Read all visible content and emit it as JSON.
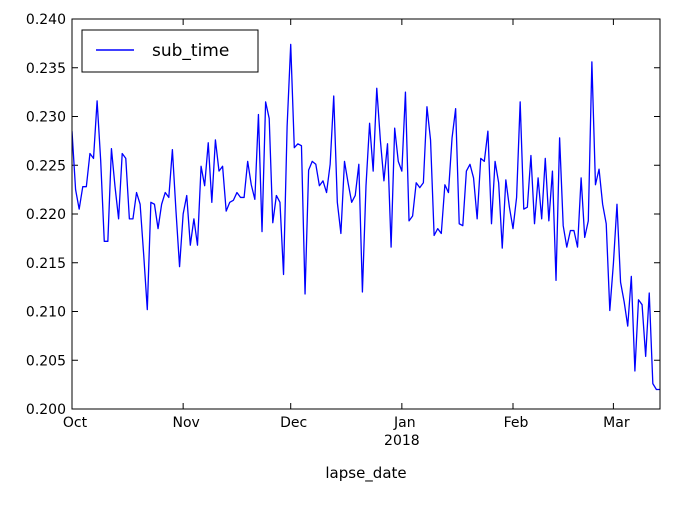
{
  "chart_data": {
    "type": "line",
    "title": "",
    "xlabel": "lapse_date",
    "ylabel": "",
    "ylim": [
      0.2,
      0.24
    ],
    "yticks": [
      0.2,
      0.205,
      0.21,
      0.215,
      0.22,
      0.225,
      0.23,
      0.235,
      0.24
    ],
    "ytick_labels": [
      "0.200",
      "0.205",
      "0.210",
      "0.215",
      "0.220",
      "0.225",
      "0.230",
      "0.235",
      "0.240"
    ],
    "xlim_days": [
      0,
      164
    ],
    "xticks": [
      {
        "day": 0,
        "label": "Oct",
        "sublabel": ""
      },
      {
        "day": 31,
        "label": "Nov",
        "sublabel": ""
      },
      {
        "day": 61,
        "label": "Dec",
        "sublabel": ""
      },
      {
        "day": 92,
        "label": "Jan",
        "sublabel": "2018"
      },
      {
        "day": 123,
        "label": "Feb",
        "sublabel": ""
      },
      {
        "day": 151,
        "label": "Mar",
        "sublabel": ""
      }
    ],
    "grid": false,
    "legend": {
      "position": "top-left",
      "entries": [
        {
          "name": "sub_time",
          "color": "#0000ff"
        }
      ]
    },
    "series": [
      {
        "name": "sub_time",
        "color": "#0000ff",
        "x_unit": "days since 2017-10-01",
        "x": [
          0,
          1,
          2,
          3,
          4,
          5,
          6,
          7,
          8,
          9,
          10,
          11,
          12,
          13,
          14,
          15,
          16,
          17,
          18,
          19,
          20,
          21,
          22,
          23,
          24,
          25,
          26,
          27,
          28,
          29,
          30,
          31,
          32,
          33,
          34,
          35,
          36,
          37,
          38,
          39,
          40,
          41,
          42,
          43,
          44,
          45,
          46,
          47,
          48,
          49,
          50,
          51,
          52,
          53,
          54,
          55,
          56,
          57,
          58,
          59,
          60,
          61,
          62,
          63,
          64,
          65,
          66,
          67,
          68,
          69,
          70,
          71,
          72,
          73,
          74,
          75,
          76,
          77,
          78,
          79,
          80,
          81,
          82,
          83,
          84,
          85,
          86,
          87,
          88,
          89,
          90,
          91,
          92,
          93,
          94,
          95,
          96,
          97,
          98,
          99,
          100,
          101,
          102,
          103,
          104,
          105,
          106,
          107,
          108,
          109,
          110,
          111,
          112,
          113,
          114,
          115,
          116,
          117,
          118,
          119,
          120,
          121,
          122,
          123,
          124,
          125,
          126,
          127,
          128,
          129,
          130,
          131,
          132,
          133,
          134,
          135,
          136,
          137,
          138,
          139,
          140,
          141,
          142,
          143,
          144,
          145,
          146,
          147,
          148,
          149,
          150,
          151,
          152,
          153,
          154,
          155,
          156,
          157,
          158,
          159,
          160,
          161,
          162,
          163,
          164
        ],
        "values": [
          0.2285,
          0.2225,
          0.2205,
          0.2228,
          0.2228,
          0.2262,
          0.2257,
          0.2316,
          0.2255,
          0.2172,
          0.2172,
          0.2267,
          0.2228,
          0.2195,
          0.2262,
          0.2257,
          0.2195,
          0.2195,
          0.2222,
          0.221,
          0.2158,
          0.2102,
          0.2212,
          0.221,
          0.2185,
          0.221,
          0.2222,
          0.2217,
          0.2266,
          0.2203,
          0.2146,
          0.22,
          0.2219,
          0.2168,
          0.2195,
          0.2168,
          0.2249,
          0.2229,
          0.2273,
          0.2212,
          0.2276,
          0.2244,
          0.2249,
          0.2203,
          0.2212,
          0.2214,
          0.2222,
          0.2217,
          0.2217,
          0.2254,
          0.223,
          0.2215,
          0.2302,
          0.2182,
          0.2315,
          0.2298,
          0.2191,
          0.2219,
          0.2212,
          0.2138,
          0.229,
          0.2374,
          0.2268,
          0.2272,
          0.227,
          0.2118,
          0.2245,
          0.2254,
          0.2251,
          0.2229,
          0.2234,
          0.2222,
          0.2251,
          0.2321,
          0.2212,
          0.218,
          0.2254,
          0.2232,
          0.2212,
          0.2219,
          0.2251,
          0.212,
          0.2229,
          0.2293,
          0.2244,
          0.2329,
          0.2276,
          0.2234,
          0.2272,
          0.2166,
          0.2288,
          0.2254,
          0.2244,
          0.2325,
          0.2193,
          0.2198,
          0.2232,
          0.2227,
          0.2232,
          0.231,
          0.2276,
          0.2178,
          0.2185,
          0.218,
          0.223,
          0.2222,
          0.2278,
          0.2308,
          0.219,
          0.2188,
          0.2244,
          0.2251,
          0.2237,
          0.2195,
          0.2257,
          0.2254,
          0.2285,
          0.219,
          0.2254,
          0.2232,
          0.2165,
          0.2235,
          0.2207,
          0.2185,
          0.2217,
          0.2315,
          0.2205,
          0.2207,
          0.226,
          0.219,
          0.2237,
          0.2195,
          0.2257,
          0.2193,
          0.2244,
          0.2132,
          0.2278,
          0.2188,
          0.2166,
          0.2183,
          0.2183,
          0.2166,
          0.2237,
          0.2176,
          0.2193,
          0.2356,
          0.223,
          0.2246,
          0.221,
          0.219,
          0.2101,
          0.2149,
          0.221,
          0.213,
          0.211,
          0.2085,
          0.2136,
          0.2039,
          0.2112,
          0.2107,
          0.2054,
          0.2119,
          0.2026,
          0.202,
          0.202
        ]
      }
    ]
  }
}
